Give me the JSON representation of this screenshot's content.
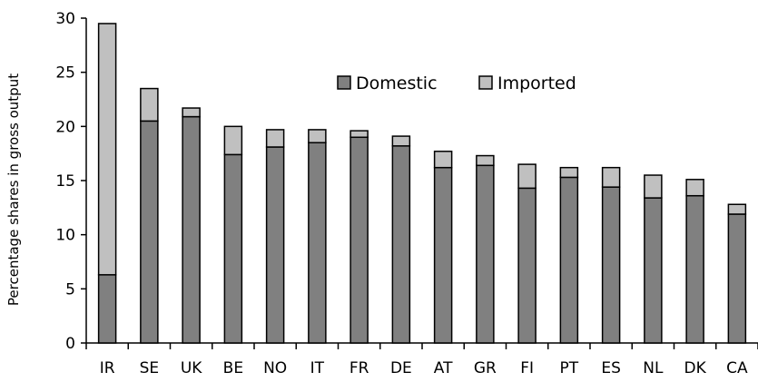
{
  "chart_data": {
    "type": "bar",
    "stacked": true,
    "title": "",
    "xlabel": "",
    "ylabel": "Percentage shares in gross output",
    "ylim": [
      0,
      30
    ],
    "yticks": [
      0,
      5,
      10,
      15,
      20,
      25,
      30
    ],
    "grid": false,
    "legend_position": "top-center",
    "categories": [
      "IR",
      "SE",
      "UK",
      "BE",
      "NO",
      "IT",
      "FR",
      "DE",
      "AT",
      "GR",
      "FI",
      "PT",
      "ES",
      "NL",
      "DK",
      "CA"
    ],
    "series": [
      {
        "name": "Domestic",
        "color": "#808080",
        "values": [
          6.3,
          20.5,
          20.9,
          17.4,
          18.1,
          18.5,
          19.0,
          18.2,
          16.2,
          16.4,
          14.3,
          15.3,
          14.4,
          13.4,
          13.6,
          11.9
        ]
      },
      {
        "name": "Imported",
        "color": "#c0c0c0",
        "values": [
          23.2,
          3.0,
          0.8,
          2.6,
          1.6,
          1.2,
          0.6,
          0.9,
          1.5,
          0.9,
          2.2,
          0.9,
          1.8,
          2.1,
          1.5,
          0.9
        ]
      }
    ]
  }
}
